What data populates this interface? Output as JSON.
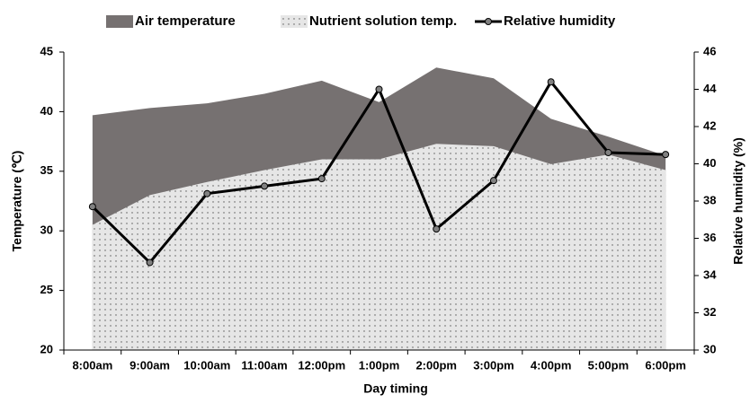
{
  "chart_data": {
    "type": "combo",
    "categories": [
      "8:00am",
      "9:00am",
      "10:00am",
      "11:00am",
      "12:00pm",
      "1:00pm",
      "2:00pm",
      "3:00pm",
      "4:00pm",
      "5:00pm",
      "6:00pm"
    ],
    "series": [
      {
        "name": "Air temperature",
        "type": "area",
        "color": "#767171",
        "values": [
          39.7,
          40.3,
          40.7,
          41.5,
          42.6,
          40.8,
          43.7,
          42.8,
          39.4,
          37.9,
          36.3
        ]
      },
      {
        "name": "Nutrient solution temp.",
        "type": "area",
        "color": "#e6e6e6",
        "values": [
          30.5,
          33.0,
          34.1,
          35.1,
          36.0,
          36.0,
          37.3,
          37.1,
          35.6,
          36.4,
          35.1
        ]
      },
      {
        "name": "Relative humidity",
        "type": "line",
        "axis": "y2",
        "color": "#000000",
        "marker_color": "#808080",
        "values": [
          37.7,
          34.7,
          38.4,
          38.8,
          39.2,
          44.0,
          36.5,
          39.1,
          44.4,
          40.6,
          40.5
        ]
      }
    ],
    "xlabel": "Day timing",
    "ylabel": "Temperature (℃)",
    "y2label": "Relative humidity (%)",
    "ylim": [
      20,
      45
    ],
    "yticks": [
      20,
      25,
      30,
      35,
      40,
      45
    ],
    "y2lim": [
      30,
      46
    ],
    "y2ticks": [
      30,
      32,
      34,
      36,
      38,
      40,
      42,
      44,
      46
    ],
    "legend": "top"
  }
}
